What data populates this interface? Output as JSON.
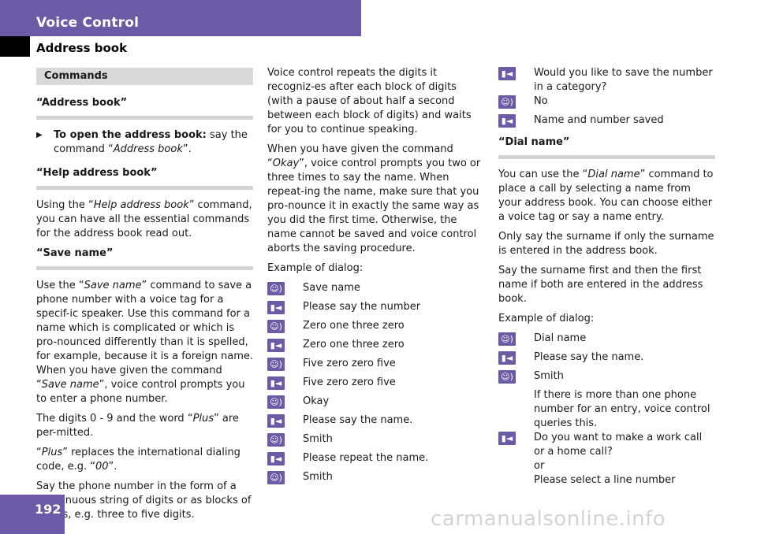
{
  "header": {
    "title": "Voice Control",
    "section": "Address book"
  },
  "page_number": "192",
  "watermark": "carmanualsonline.info",
  "icons": {
    "user": "user-speaking-icon",
    "system": "system-speaking-icon"
  },
  "col1": {
    "commands_box": "Commands",
    "h_address_book": "“Address book”",
    "bullet_bold": "To open the address book:",
    "bullet_text_a": " say the command “",
    "bullet_italic": "Address book",
    "bullet_text_b": "”.",
    "h_help": "“Help address book”",
    "help_a": "Using the “",
    "help_italic": "Help address book",
    "help_b": "” command, you can have all the essential commands for the address book read out.",
    "h_save": "“Save name”",
    "save_a": "Use the “",
    "save_italic": "Save name",
    "save_b": "” command to save a phone number with a voice tag for a specif-ic speaker. Use this command for a name which is complicated or which is pro-nounced differently than it is spelled, for example, because it is a foreign name. When you have given the command “",
    "save_italic2": "Save name",
    "save_c": "”, voice control prompts you to enter a phone number.",
    "digits_a": "The digits 0 - 9 and the word “",
    "digits_italic": "Plus",
    "digits_b": "” are per-mitted.",
    "plus_a": "“",
    "plus_italic": "Plus",
    "plus_b": "” replaces the international dialing code, e.g. “",
    "plus_italic2": "00",
    "plus_c": "”.",
    "say_phone": "Say the phone number in the form of a con-tinuous string of digits or as blocks of dig-its, e.g. three to five digits."
  },
  "col2": {
    "p1": "Voice control repeats the digits it recogniz-es after each block of digits (with a pause of about half a second between each block of digits) and waits for you to continue speaking.",
    "p2_a": "When you have given the command “",
    "p2_italic": "Okay",
    "p2_b": "”, voice control prompts you two or three times to say the name. When repeat-ing the name, make sure that you pro-nounce it in exactly the same way as you did the first time. Otherwise, the name cannot be saved and voice control aborts the saving procedure.",
    "example": "Example of dialog:",
    "dialog": [
      {
        "speaker": "user",
        "text": "Save name"
      },
      {
        "speaker": "system",
        "text": "Please say the number"
      },
      {
        "speaker": "user",
        "text": "Zero one three zero"
      },
      {
        "speaker": "system",
        "text": "Zero one three zero"
      },
      {
        "speaker": "user",
        "text": "Five zero zero five"
      },
      {
        "speaker": "system",
        "text": "Five zero zero five"
      },
      {
        "speaker": "user",
        "text": "Okay"
      },
      {
        "speaker": "system",
        "text": "Please say the name."
      },
      {
        "speaker": "user",
        "text": "Smith"
      },
      {
        "speaker": "system",
        "text": "Please repeat the name."
      },
      {
        "speaker": "user",
        "text": "Smith"
      }
    ]
  },
  "col3": {
    "dialog_top": [
      {
        "speaker": "system",
        "text": "Would you like to save the number in a category?"
      },
      {
        "speaker": "user",
        "text": "No"
      },
      {
        "speaker": "system",
        "text": "Name and number saved"
      }
    ],
    "h_dial": "“Dial name”",
    "dial_a": "You can use the “",
    "dial_italic": "Dial name",
    "dial_b": "” command to place a call by selecting a name from your address book. You can choose either a voice tag or say a name entry.",
    "surname": "Only say the surname if only the surname is entered in the address book.",
    "surname_first": "Say the surname first and then the first name if both are entered in the address book.",
    "example": "Example of dialog:",
    "dialog2": [
      {
        "speaker": "user",
        "text": "Dial name"
      },
      {
        "speaker": "system",
        "text": "Please say the name."
      },
      {
        "speaker": "user",
        "text": "Smith"
      },
      {
        "speaker": "none",
        "text": "If there is more than one phone number for an entry, voice control queries this."
      }
    ],
    "last_line1": "Do you want to make a work call or a home call?",
    "last_or": "or",
    "last_line2": "Please select a line number"
  }
}
